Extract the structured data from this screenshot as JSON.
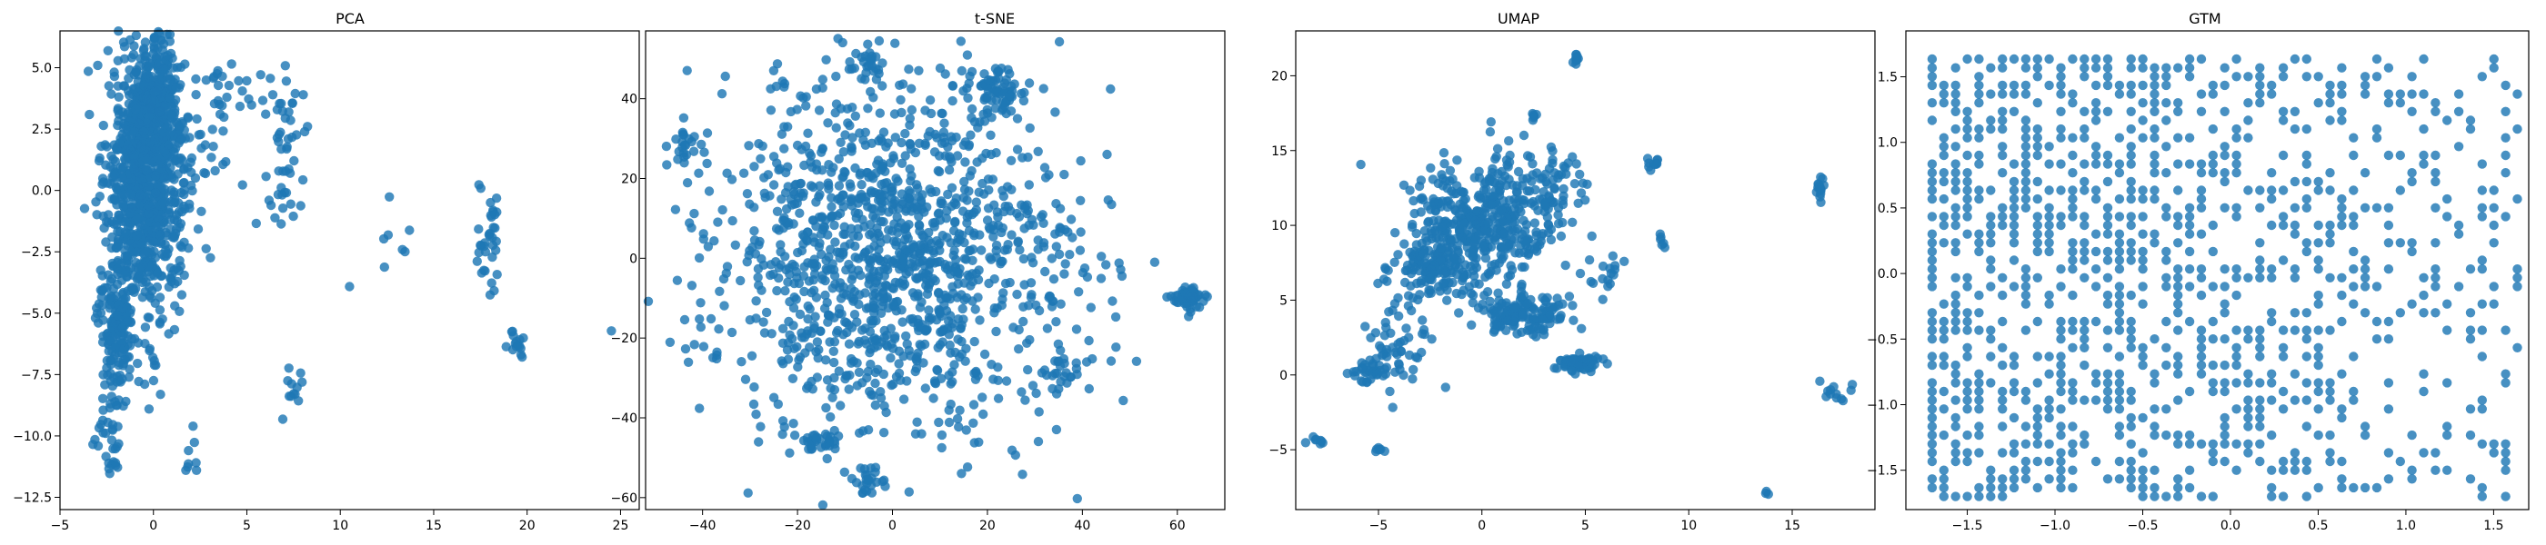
{
  "chart_data": [
    {
      "type": "scatter",
      "title": "PCA",
      "color": "#1f77b4",
      "xlim": [
        -5,
        26
      ],
      "ylim": [
        -13,
        6.5
      ],
      "xticks": [
        -5,
        0,
        5,
        10,
        15,
        20,
        25
      ],
      "yticks": [
        -12.5,
        -10.0,
        -7.5,
        -5.0,
        -2.5,
        0.0,
        2.5,
        5.0
      ],
      "xtick_labels": [
        "−5",
        "0",
        "5",
        "10",
        "15",
        "20",
        "25"
      ],
      "ytick_labels": [
        "−12.5",
        "−10.0",
        "−7.5",
        "−5.0",
        "−2.5",
        "0.0",
        "2.5",
        "5.0"
      ],
      "clusters": [
        {
          "cx": -0.5,
          "cy": 0.5,
          "sx": 1.0,
          "sy": 2.8,
          "n": 900
        },
        {
          "cx": 0.3,
          "cy": 3.5,
          "sx": 0.6,
          "sy": 1.2,
          "n": 200
        },
        {
          "cx": -2.0,
          "cy": -5.5,
          "sx": 0.5,
          "sy": 1.5,
          "n": 150
        },
        {
          "cx": -2.5,
          "cy": -9.5,
          "sx": 0.5,
          "sy": 0.8,
          "n": 25
        },
        {
          "cx": -2.2,
          "cy": -11.2,
          "sx": 0.2,
          "sy": 0.3,
          "n": 8
        },
        {
          "cx": 2.5,
          "cy": 2.0,
          "sx": 1.2,
          "sy": 1.5,
          "n": 50
        },
        {
          "cx": 4.5,
          "cy": 4.0,
          "sx": 1.2,
          "sy": 0.6,
          "n": 20
        },
        {
          "cx": 7.0,
          "cy": 2.5,
          "sx": 0.6,
          "sy": 1.2,
          "n": 35
        },
        {
          "cx": 7.5,
          "cy": -8.0,
          "sx": 0.4,
          "sy": 0.5,
          "n": 12
        },
        {
          "cx": 7.0,
          "cy": -0.5,
          "sx": 1.0,
          "sy": 1.0,
          "n": 15
        },
        {
          "cx": 2.0,
          "cy": -10.8,
          "sx": 0.2,
          "sy": 0.6,
          "n": 8
        },
        {
          "cx": 1.5,
          "cy": -2.5,
          "sx": 0.8,
          "sy": 1.2,
          "n": 20
        },
        {
          "cx": 13.0,
          "cy": -2.5,
          "sx": 0.8,
          "sy": 1.2,
          "n": 8
        },
        {
          "cx": 18.0,
          "cy": -2.0,
          "sx": 0.3,
          "sy": 1.3,
          "n": 35
        },
        {
          "cx": 19.5,
          "cy": -6.3,
          "sx": 0.4,
          "sy": 0.4,
          "n": 15
        },
        {
          "cx": 24.5,
          "cy": -5.7,
          "sx": 0.05,
          "sy": 0.05,
          "n": 1
        }
      ]
    },
    {
      "type": "scatter",
      "title": "t-SNE",
      "color": "#1f77b4",
      "xlim": [
        -52,
        70
      ],
      "ylim": [
        -63,
        57
      ],
      "xticks": [
        -40,
        -20,
        0,
        20,
        40,
        60
      ],
      "yticks": [
        -60,
        -40,
        -20,
        0,
        20,
        40
      ],
      "xtick_labels": [
        "−40",
        "−20",
        "0",
        "20",
        "40",
        "60"
      ],
      "ytick_labels": [
        "−60",
        "−40",
        "−20",
        "0",
        "20",
        "40"
      ],
      "clusters": [
        {
          "cx": 0,
          "cy": 0,
          "sx": 19,
          "sy": 22,
          "n": 1300
        },
        {
          "cx": 22,
          "cy": 42,
          "sx": 3,
          "sy": 3,
          "n": 70
        },
        {
          "cx": 62,
          "cy": -10,
          "sx": 2,
          "sy": 1.5,
          "n": 50
        },
        {
          "cx": -15,
          "cy": -46,
          "sx": 2.5,
          "sy": 1.5,
          "n": 30
        },
        {
          "cx": -5,
          "cy": -56,
          "sx": 2,
          "sy": 2.5,
          "n": 25
        },
        {
          "cx": -5,
          "cy": 50,
          "sx": 2,
          "sy": 2,
          "n": 20
        },
        {
          "cx": -44,
          "cy": 28,
          "sx": 2,
          "sy": 2,
          "n": 20
        },
        {
          "cx": 35,
          "cy": -28,
          "sx": 3,
          "sy": 3,
          "n": 25
        }
      ]
    },
    {
      "type": "scatter",
      "title": "UMAP",
      "color": "#1f77b4",
      "xlim": [
        -9,
        19
      ],
      "ylim": [
        -9,
        23
      ],
      "xticks": [
        -5,
        0,
        5,
        10,
        15
      ],
      "yticks": [
        -5,
        0,
        5,
        10,
        15,
        20
      ],
      "xtick_labels": [
        "−5",
        "0",
        "5",
        "10",
        "15"
      ],
      "ytick_labels": [
        "−5",
        "0",
        "5",
        "10",
        "15",
        "20"
      ],
      "clusters": [
        {
          "cx": 0,
          "cy": 10,
          "sx": 1.8,
          "sy": 2.3,
          "n": 450
        },
        {
          "cx": -2.5,
          "cy": 7.5,
          "sx": 1.0,
          "sy": 1.0,
          "n": 120
        },
        {
          "cx": 2.0,
          "cy": 4.0,
          "sx": 1.2,
          "sy": 0.7,
          "n": 130
        },
        {
          "cx": 4.7,
          "cy": 0.8,
          "sx": 0.5,
          "sy": 0.25,
          "n": 90
        },
        {
          "cx": -4.0,
          "cy": 2.0,
          "sx": 1.0,
          "sy": 1.5,
          "n": 60
        },
        {
          "cx": -5.5,
          "cy": 0.0,
          "sx": 0.5,
          "sy": 0.6,
          "n": 25
        },
        {
          "cx": 4.5,
          "cy": 21.0,
          "sx": 0.1,
          "sy": 0.25,
          "n": 10
        },
        {
          "cx": 2.5,
          "cy": 17.2,
          "sx": 0.1,
          "sy": 0.2,
          "n": 6
        },
        {
          "cx": -8.0,
          "cy": -4.4,
          "sx": 0.2,
          "sy": 0.2,
          "n": 8
        },
        {
          "cx": -5.0,
          "cy": -5.0,
          "sx": 0.15,
          "sy": 0.1,
          "n": 6
        },
        {
          "cx": 8.3,
          "cy": 14.2,
          "sx": 0.2,
          "sy": 0.2,
          "n": 10
        },
        {
          "cx": 8.7,
          "cy": 9.0,
          "sx": 0.1,
          "sy": 0.3,
          "n": 6
        },
        {
          "cx": 16.4,
          "cy": 12.5,
          "sx": 0.1,
          "sy": 0.5,
          "n": 15
        },
        {
          "cx": 17.0,
          "cy": -1.3,
          "sx": 0.5,
          "sy": 0.4,
          "n": 12
        },
        {
          "cx": 13.8,
          "cy": -8.0,
          "sx": 0.05,
          "sy": 0.1,
          "n": 3
        },
        {
          "cx": 6.0,
          "cy": 6.5,
          "sx": 0.6,
          "sy": 0.6,
          "n": 15
        },
        {
          "cx": 3.5,
          "cy": 13.0,
          "sx": 0.8,
          "sy": 1.0,
          "n": 40
        }
      ]
    },
    {
      "type": "scatter",
      "title": "GTM",
      "color": "#1f77b4",
      "xlim": [
        -1.85,
        1.7
      ],
      "ylim": [
        -1.8,
        1.85
      ],
      "xticks": [
        -1.5,
        -1.0,
        -0.5,
        0.0,
        0.5,
        1.0,
        1.5
      ],
      "yticks": [
        -1.5,
        -1.0,
        -0.5,
        0.0,
        0.5,
        1.0,
        1.5
      ],
      "xtick_labels": [
        "−1.5",
        "−1.0",
        "−0.5",
        "0.0",
        "0.5",
        "1.0",
        "1.5"
      ],
      "ytick_labels": [
        "−1.5",
        "−1.0",
        "−0.5",
        "0.0",
        "0.5",
        "1.0",
        "1.5"
      ],
      "grid_step": 0.0667,
      "grid_min": -1.7,
      "grid_max": 1.7
    }
  ]
}
